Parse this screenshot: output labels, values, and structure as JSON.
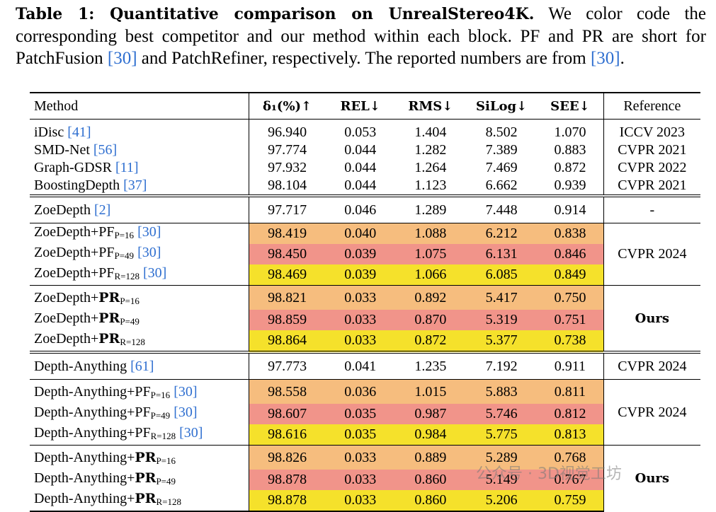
{
  "caption": {
    "label": "Table 1: Quantitative comparison on UnrealStereo4K.",
    "text_1": " We color code the corresponding best competitor and our method within each block. PF and PR are short for PatchFusion ",
    "ref_1": "[30]",
    "text_2": " and PatchRefiner, respectively. The reported numbers are from ",
    "ref_2": "[30]",
    "text_3": "."
  },
  "header": {
    "method": "Method",
    "delta": "δ₁(%)↑",
    "rel": "REL↓",
    "rms": "RMS↓",
    "silog": "SiLog↓",
    "see": "SEE↓",
    "reference": "Reference"
  },
  "block1": [
    {
      "name": "iDisc",
      "cite": "[41]",
      "delta": "96.940",
      "rel": "0.053",
      "rms": "1.404",
      "silog": "8.502",
      "see": "1.070",
      "ref": "ICCV 2023"
    },
    {
      "name": "SMD-Net",
      "cite": "[56]",
      "delta": "97.774",
      "rel": "0.044",
      "rms": "1.282",
      "silog": "7.389",
      "see": "0.883",
      "ref": "CVPR 2021"
    },
    {
      "name": "Graph-GDSR",
      "cite": "[11]",
      "delta": "97.932",
      "rel": "0.044",
      "rms": "1.264",
      "silog": "7.469",
      "see": "0.872",
      "ref": "CVPR 2022"
    },
    {
      "name": "BoostingDepth",
      "cite": "[37]",
      "delta": "98.104",
      "rel": "0.044",
      "rms": "1.123",
      "silog": "6.662",
      "see": "0.939",
      "ref": "CVPR 2021"
    }
  ],
  "zoe_base": {
    "name": "ZoeDepth",
    "cite": "[2]",
    "delta": "97.717",
    "rel": "0.046",
    "rms": "1.289",
    "silog": "7.448",
    "see": "0.914",
    "ref": "-"
  },
  "zoe_pf": {
    "prefix": "ZoeDepth+PF",
    "ref": "CVPR 2024",
    "rows": [
      {
        "sub": "P=16",
        "cite": "[30]",
        "delta": "98.419",
        "rel": "0.040",
        "rms": "1.088",
        "silog": "6.212",
        "see": "0.838"
      },
      {
        "sub": "P=49",
        "cite": "[30]",
        "delta": "98.450",
        "rel": "0.039",
        "rms": "1.075",
        "silog": "6.131",
        "see": "0.846"
      },
      {
        "sub": "R=128",
        "cite": "[30]",
        "delta": "98.469",
        "rel": "0.039",
        "rms": "1.066",
        "silog": "6.085",
        "see": "0.849"
      }
    ]
  },
  "zoe_pr": {
    "prefix": "ZoeDepth+",
    "bold": "PR",
    "ref": "Ours",
    "rows": [
      {
        "sub": "P=16",
        "delta": "98.821",
        "rel": "0.033",
        "rms": "0.892",
        "silog": "5.417",
        "see": "0.750"
      },
      {
        "sub": "P=49",
        "delta": "98.859",
        "rel": "0.033",
        "rms": "0.870",
        "silog": "5.319",
        "see": "0.751"
      },
      {
        "sub": "R=128",
        "delta": "98.864",
        "rel": "0.033",
        "rms": "0.872",
        "silog": "5.377",
        "see": "0.738"
      }
    ]
  },
  "da_base": {
    "name": "Depth-Anything",
    "cite": "[61]",
    "delta": "97.773",
    "rel": "0.041",
    "rms": "1.235",
    "silog": "7.192",
    "see": "0.911",
    "ref": "CVPR 2024"
  },
  "da_pf": {
    "prefix": "Depth-Anything+PF",
    "ref": "CVPR 2024",
    "rows": [
      {
        "sub": "P=16",
        "cite": "[30]",
        "delta": "98.558",
        "rel": "0.036",
        "rms": "1.015",
        "silog": "5.883",
        "see": "0.811"
      },
      {
        "sub": "P=49",
        "cite": "[30]",
        "delta": "98.607",
        "rel": "0.035",
        "rms": "0.987",
        "silog": "5.746",
        "see": "0.812"
      },
      {
        "sub": "R=128",
        "cite": "[30]",
        "delta": "98.616",
        "rel": "0.035",
        "rms": "0.984",
        "silog": "5.775",
        "see": "0.813"
      }
    ]
  },
  "da_pr": {
    "prefix": "Depth-Anything+",
    "bold": "PR",
    "ref": "Ours",
    "rows": [
      {
        "sub": "P=16",
        "delta": "98.826",
        "rel": "0.033",
        "rms": "0.889",
        "silog": "5.289",
        "see": "0.768"
      },
      {
        "sub": "P=49",
        "delta": "98.878",
        "rel": "0.033",
        "rms": "0.860",
        "silog": "5.149",
        "see": "0.767"
      },
      {
        "sub": "R=128",
        "delta": "98.878",
        "rel": "0.033",
        "rms": "0.860",
        "silog": "5.206",
        "see": "0.759"
      }
    ]
  },
  "watermark": "公众号 · 3D视觉工坊",
  "colors": {
    "orange": "#f6bd7e",
    "red": "#f1948a",
    "yellow": "#f5e12b",
    "link": "#2f6fd0"
  }
}
